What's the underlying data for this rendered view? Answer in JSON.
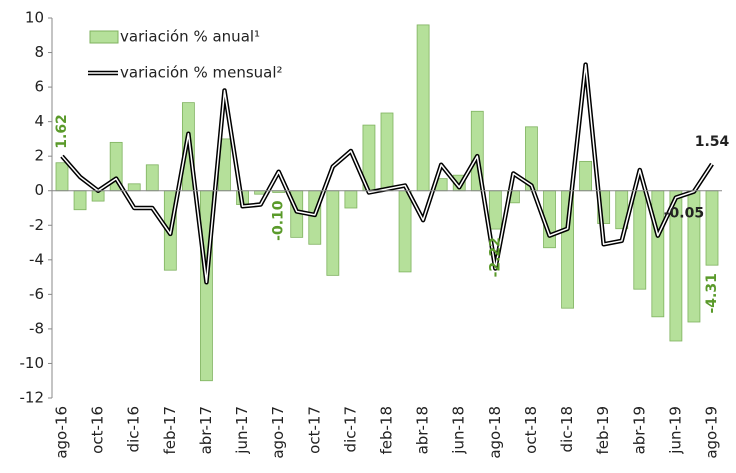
{
  "chart_data": {
    "type": "bar-line",
    "categories": [
      "ago-16",
      null,
      "oct-16",
      null,
      "dic-16",
      null,
      "feb-17",
      null,
      "abr-17",
      null,
      "jun-17",
      null,
      "ago-17",
      null,
      "oct-17",
      null,
      "dic-17",
      null,
      "feb-18",
      null,
      "abr-18",
      null,
      "jun-18",
      null,
      "ago-18",
      null,
      "oct-18",
      null,
      "dic-18",
      null,
      "feb-19",
      null,
      "abr-19",
      null,
      "jun-19",
      null,
      "ago-19"
    ],
    "series": [
      {
        "name": "variación % anual¹",
        "type": "bar",
        "color": "#b5e09a",
        "values": [
          1.62,
          -1.1,
          -0.6,
          2.8,
          0.4,
          1.5,
          -4.6,
          5.1,
          -11.0,
          3.0,
          -0.8,
          -0.2,
          -0.1,
          -2.7,
          -3.1,
          -4.9,
          -1.0,
          3.8,
          4.5,
          -4.7,
          9.6,
          0.7,
          0.9,
          4.6,
          -2.22,
          -0.7,
          3.7,
          -3.3,
          -6.8,
          1.7,
          -1.9,
          -2.2,
          -5.7,
          -7.3,
          -8.7,
          -7.6,
          -4.31
        ],
        "value_labels": [
          "1.62",
          null,
          null,
          null,
          null,
          null,
          null,
          null,
          null,
          null,
          null,
          null,
          "-0.10",
          null,
          null,
          null,
          null,
          null,
          null,
          null,
          null,
          null,
          null,
          null,
          "-2.22",
          null,
          null,
          null,
          null,
          null,
          null,
          null,
          null,
          null,
          null,
          null,
          "-4.31"
        ]
      },
      {
        "name": "variación % mensual²",
        "type": "line",
        "color": "#000000",
        "values": [
          2.0,
          0.8,
          0.0,
          0.7,
          -1.0,
          -1.0,
          -2.5,
          3.3,
          -5.3,
          5.8,
          -0.9,
          -0.8,
          1.1,
          -1.2,
          -1.4,
          1.4,
          2.3,
          -0.1,
          0.1,
          0.3,
          -1.7,
          1.5,
          0.2,
          2.0,
          -4.5,
          1.0,
          0.3,
          -2.6,
          -2.2,
          7.3,
          -3.1,
          -2.9,
          1.2,
          -2.6,
          -0.4,
          -0.05,
          1.54
        ],
        "value_labels": [
          null,
          null,
          null,
          null,
          null,
          null,
          null,
          null,
          null,
          null,
          null,
          null,
          null,
          null,
          null,
          null,
          null,
          null,
          null,
          null,
          null,
          null,
          null,
          null,
          null,
          null,
          null,
          null,
          null,
          null,
          null,
          null,
          null,
          null,
          null,
          "-0.05",
          "1.54"
        ]
      }
    ],
    "ylim": [
      -12,
      10
    ],
    "yticks": [
      -12,
      -10,
      -8,
      -6,
      -4,
      -2,
      0,
      2,
      4,
      6,
      8,
      10
    ],
    "legend": "top-left"
  }
}
